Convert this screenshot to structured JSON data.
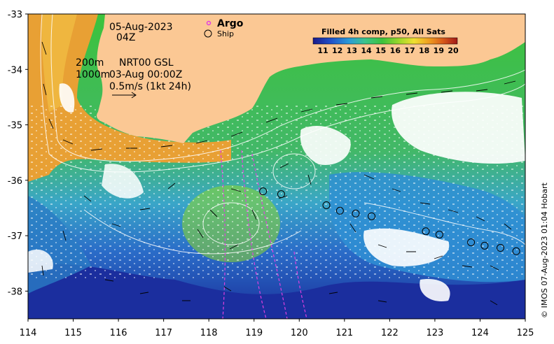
{
  "map": {
    "date": "05-Aug-2023",
    "time": "04Z",
    "depth_label_1": "200m",
    "depth_label_2": "1000m",
    "current_source": "NRT00 GSL",
    "current_time": "03-Aug 00:00Z",
    "scale_label": "0.5m/s (1kt 24h)",
    "credit": "© IMOS 07-Aug-2023 01:04 Hobart",
    "lon_range": [
      114,
      125
    ],
    "lat_range": [
      -38.5,
      -33
    ]
  },
  "legend": {
    "argo": "Argo",
    "ship": "Ship"
  },
  "colorbar": {
    "title": "Filled 4h comp, p50, All Sats",
    "ticks": [
      "11",
      "12",
      "13",
      "14",
      "15",
      "16",
      "17",
      "18",
      "19",
      "20"
    ]
  },
  "axes": {
    "x_ticks": [
      "114",
      "115",
      "116",
      "117",
      "118",
      "119",
      "120",
      "121",
      "122",
      "123",
      "124",
      "125"
    ],
    "y_ticks": [
      "-33",
      "-34",
      "-35",
      "-36",
      "-37",
      "-38"
    ]
  },
  "colors": {
    "land": "#fbc894",
    "warm": "#e8a034",
    "mid": "#4cc44c",
    "cool": "#2f9cd8",
    "cold": "#1a3aa8",
    "argo": "#e040e0"
  },
  "ship_positions": [
    {
      "lon": 119.2,
      "lat": -36.2
    },
    {
      "lon": 119.6,
      "lat": -36.25
    },
    {
      "lon": 120.6,
      "lat": -36.45
    },
    {
      "lon": 120.9,
      "lat": -36.55
    },
    {
      "lon": 121.25,
      "lat": -36.6
    },
    {
      "lon": 121.6,
      "lat": -36.65
    },
    {
      "lon": 122.8,
      "lat": -36.92
    },
    {
      "lon": 123.1,
      "lat": -36.98
    },
    {
      "lon": 123.8,
      "lat": -37.12
    },
    {
      "lon": 124.1,
      "lat": -37.18
    },
    {
      "lon": 124.45,
      "lat": -37.22
    },
    {
      "lon": 124.8,
      "lat": -37.28
    }
  ]
}
